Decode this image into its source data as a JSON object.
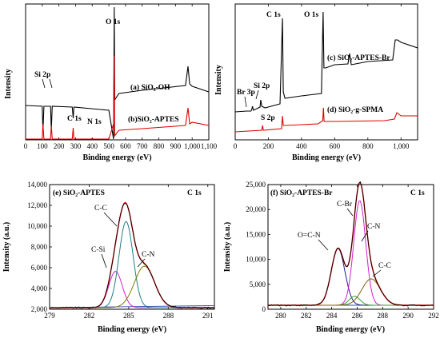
{
  "chart_data": [
    {
      "panel": "top-left",
      "type": "line",
      "xlabel": "Binding energy (eV)",
      "ylabel": "Intensity",
      "xlim": [
        0,
        1100
      ],
      "xticks": [
        0,
        100,
        200,
        300,
        400,
        500,
        600,
        700,
        800,
        900,
        1000,
        1100
      ],
      "annotations": [
        "O 1s",
        "Si 2p",
        "C 1s",
        "N 1s"
      ],
      "series": [
        {
          "name": "(a) SiO2-OH",
          "color": "#000000",
          "x": [
            0,
            100,
            104,
            110,
            150,
            154,
            160,
            280,
            286,
            290,
            500,
            528,
            532,
            535,
            560,
            700,
            960,
            975,
            985,
            1000,
            1100
          ],
          "y": [
            127,
            128,
            160,
            128,
            128,
            158,
            128,
            129,
            143,
            129,
            133,
            200,
            4,
            120,
            112,
            108,
            102,
            78,
            100,
            103,
            110
          ]
        },
        {
          "name": "(b)SiO2-APTES",
          "color": "#e00000",
          "x": [
            0,
            100,
            104,
            110,
            150,
            154,
            160,
            280,
            286,
            290,
            395,
            400,
            405,
            500,
            528,
            532,
            535,
            560,
            700,
            960,
            975,
            985,
            1000,
            1100
          ],
          "y": [
            170,
            170,
            150,
            170,
            170,
            152,
            170,
            170,
            155,
            170,
            170,
            168,
            170,
            170,
            150,
            65,
            165,
            158,
            156,
            152,
            130,
            150,
            148,
            152
          ]
        }
      ]
    },
    {
      "panel": "top-right",
      "type": "line",
      "xlabel": "Binding energy (eV)",
      "ylabel": "Intensity",
      "xlim": [
        0,
        1100
      ],
      "xticks": [
        0,
        200,
        400,
        600,
        800,
        1000
      ],
      "annotations": [
        "C 1s",
        "O 1s",
        "Br 3p",
        "Si 2p",
        "S 2p"
      ],
      "series": [
        {
          "name": "(c) SiO2-APTES-Br",
          "color": "#000000",
          "x": [
            0,
            70,
            95,
            100,
            104,
            110,
            150,
            154,
            160,
            180,
            270,
            285,
            290,
            300,
            400,
            520,
            530,
            535,
            545,
            600,
            680,
            690,
            700,
            800,
            950,
            965,
            980,
            1000,
            1100
          ],
          "y": [
            135,
            134,
            134,
            132,
            128,
            133,
            129,
            120,
            128,
            130,
            125,
            18,
            110,
            118,
            115,
            112,
            10,
            80,
            80,
            76,
            75,
            62,
            76,
            72,
            70,
            45,
            45,
            48,
            55
          ]
        },
        {
          "name": "(d) SiO2-g-SPMA",
          "color": "#e00000",
          "x": [
            0,
            160,
            165,
            170,
            280,
            285,
            290,
            300,
            500,
            528,
            532,
            536,
            600,
            900,
            960,
            975,
            1000,
            1100
          ],
          "y": [
            160,
            158,
            152,
            158,
            156,
            140,
            152,
            152,
            150,
            146,
            130,
            147,
            147,
            146,
            144,
            136,
            140,
            140
          ]
        }
      ]
    },
    {
      "panel": "bottom-left",
      "type": "line",
      "title": "(e) SiO2-APTES",
      "corner_label": "C 1s",
      "xlabel": "Binding energy (eV)",
      "ylabel": "Intensity (a.u.)",
      "xlim": [
        279,
        291.5
      ],
      "ylim": [
        2000,
        14000
      ],
      "xticks": [
        279,
        282,
        285,
        288,
        291
      ],
      "yticks": [
        2000,
        4000,
        6000,
        8000,
        10000,
        12000,
        14000
      ],
      "components": [
        {
          "name": "C-Si",
          "color": "#d020d0",
          "center": 284.0,
          "height": 3500,
          "fwhm": 1.2
        },
        {
          "name": "C-C",
          "color": "#208080",
          "center": 284.8,
          "height": 8300,
          "fwhm": 1.25
        },
        {
          "name": "C-N",
          "color": "#808000",
          "center": 286.2,
          "height": 4000,
          "fwhm": 1.8
        }
      ],
      "baseline": 2150,
      "envelope_color": "#e00000",
      "raw_color": "#000000"
    },
    {
      "panel": "bottom-right",
      "type": "line",
      "title": "(f) SiO2-APTES-Br",
      "corner_label": "C 1s",
      "xlabel": "Binding energy (eV)",
      "ylabel": "Intensity (a.u.)",
      "xlim": [
        279,
        292
      ],
      "ylim": [
        0,
        25000
      ],
      "xticks": [
        280,
        282,
        284,
        286,
        288,
        290,
        292
      ],
      "yticks": [
        0,
        5000,
        10000,
        15000,
        20000,
        25000
      ],
      "components": [
        {
          "name": "O=C-N",
          "color": "#1a1a8a",
          "center": 284.5,
          "height": 11400,
          "fwhm": 1.25
        },
        {
          "name": "C-Br",
          "color": "#d020d0",
          "center": 286.2,
          "height": 21000,
          "fwhm": 1.1
        },
        {
          "name": "C-N",
          "color": "#30a030",
          "center": 285.8,
          "height": 1800,
          "fwhm": 1.0
        },
        {
          "name": "C-C",
          "color": "#806000",
          "center": 287.1,
          "height": 5300,
          "fwhm": 1.7
        }
      ],
      "baseline": 800,
      "envelope_color": "#e00000",
      "raw_color": "#000000"
    }
  ],
  "labels": {
    "a": {
      "o1s": "O 1s",
      "si2p": "Si 2p",
      "c1s": "C 1s",
      "n1s": "N 1s",
      "sA": "(a) SiO₂-OH",
      "sB": "(b)SiO₂-APTES",
      "xlab": "Binding energy (eV)",
      "ylab": "Intensity"
    },
    "b": {
      "c1s": "C 1s",
      "o1s": "O 1s",
      "br3p": "Br 3p",
      "si2p": "Si 2p",
      "s2p": "S 2p",
      "sC": "(c) SiO₂-APTES-Br",
      "sD": "(d) SiO₂-g-SPMA",
      "xlab": "Binding energy (eV)",
      "ylab": "Intensity"
    },
    "e": {
      "title": "(e) SiO₂-APTES",
      "c1s": "C 1s",
      "cc": "C-C",
      "csi": "C-Si",
      "cn": "C-N",
      "xlab": "Binding energy (eV)",
      "ylab": "Intensity (a.u.)"
    },
    "f": {
      "title": "(f) SiO₂-APTES-Br",
      "c1s": "C 1s",
      "ocn": "O=C-N",
      "cbr": "C-Br",
      "cn": "C-N",
      "cc": "C-C",
      "xlab": "Binding energy (eV)",
      "ylab": "Intensity (a.u.)"
    }
  }
}
